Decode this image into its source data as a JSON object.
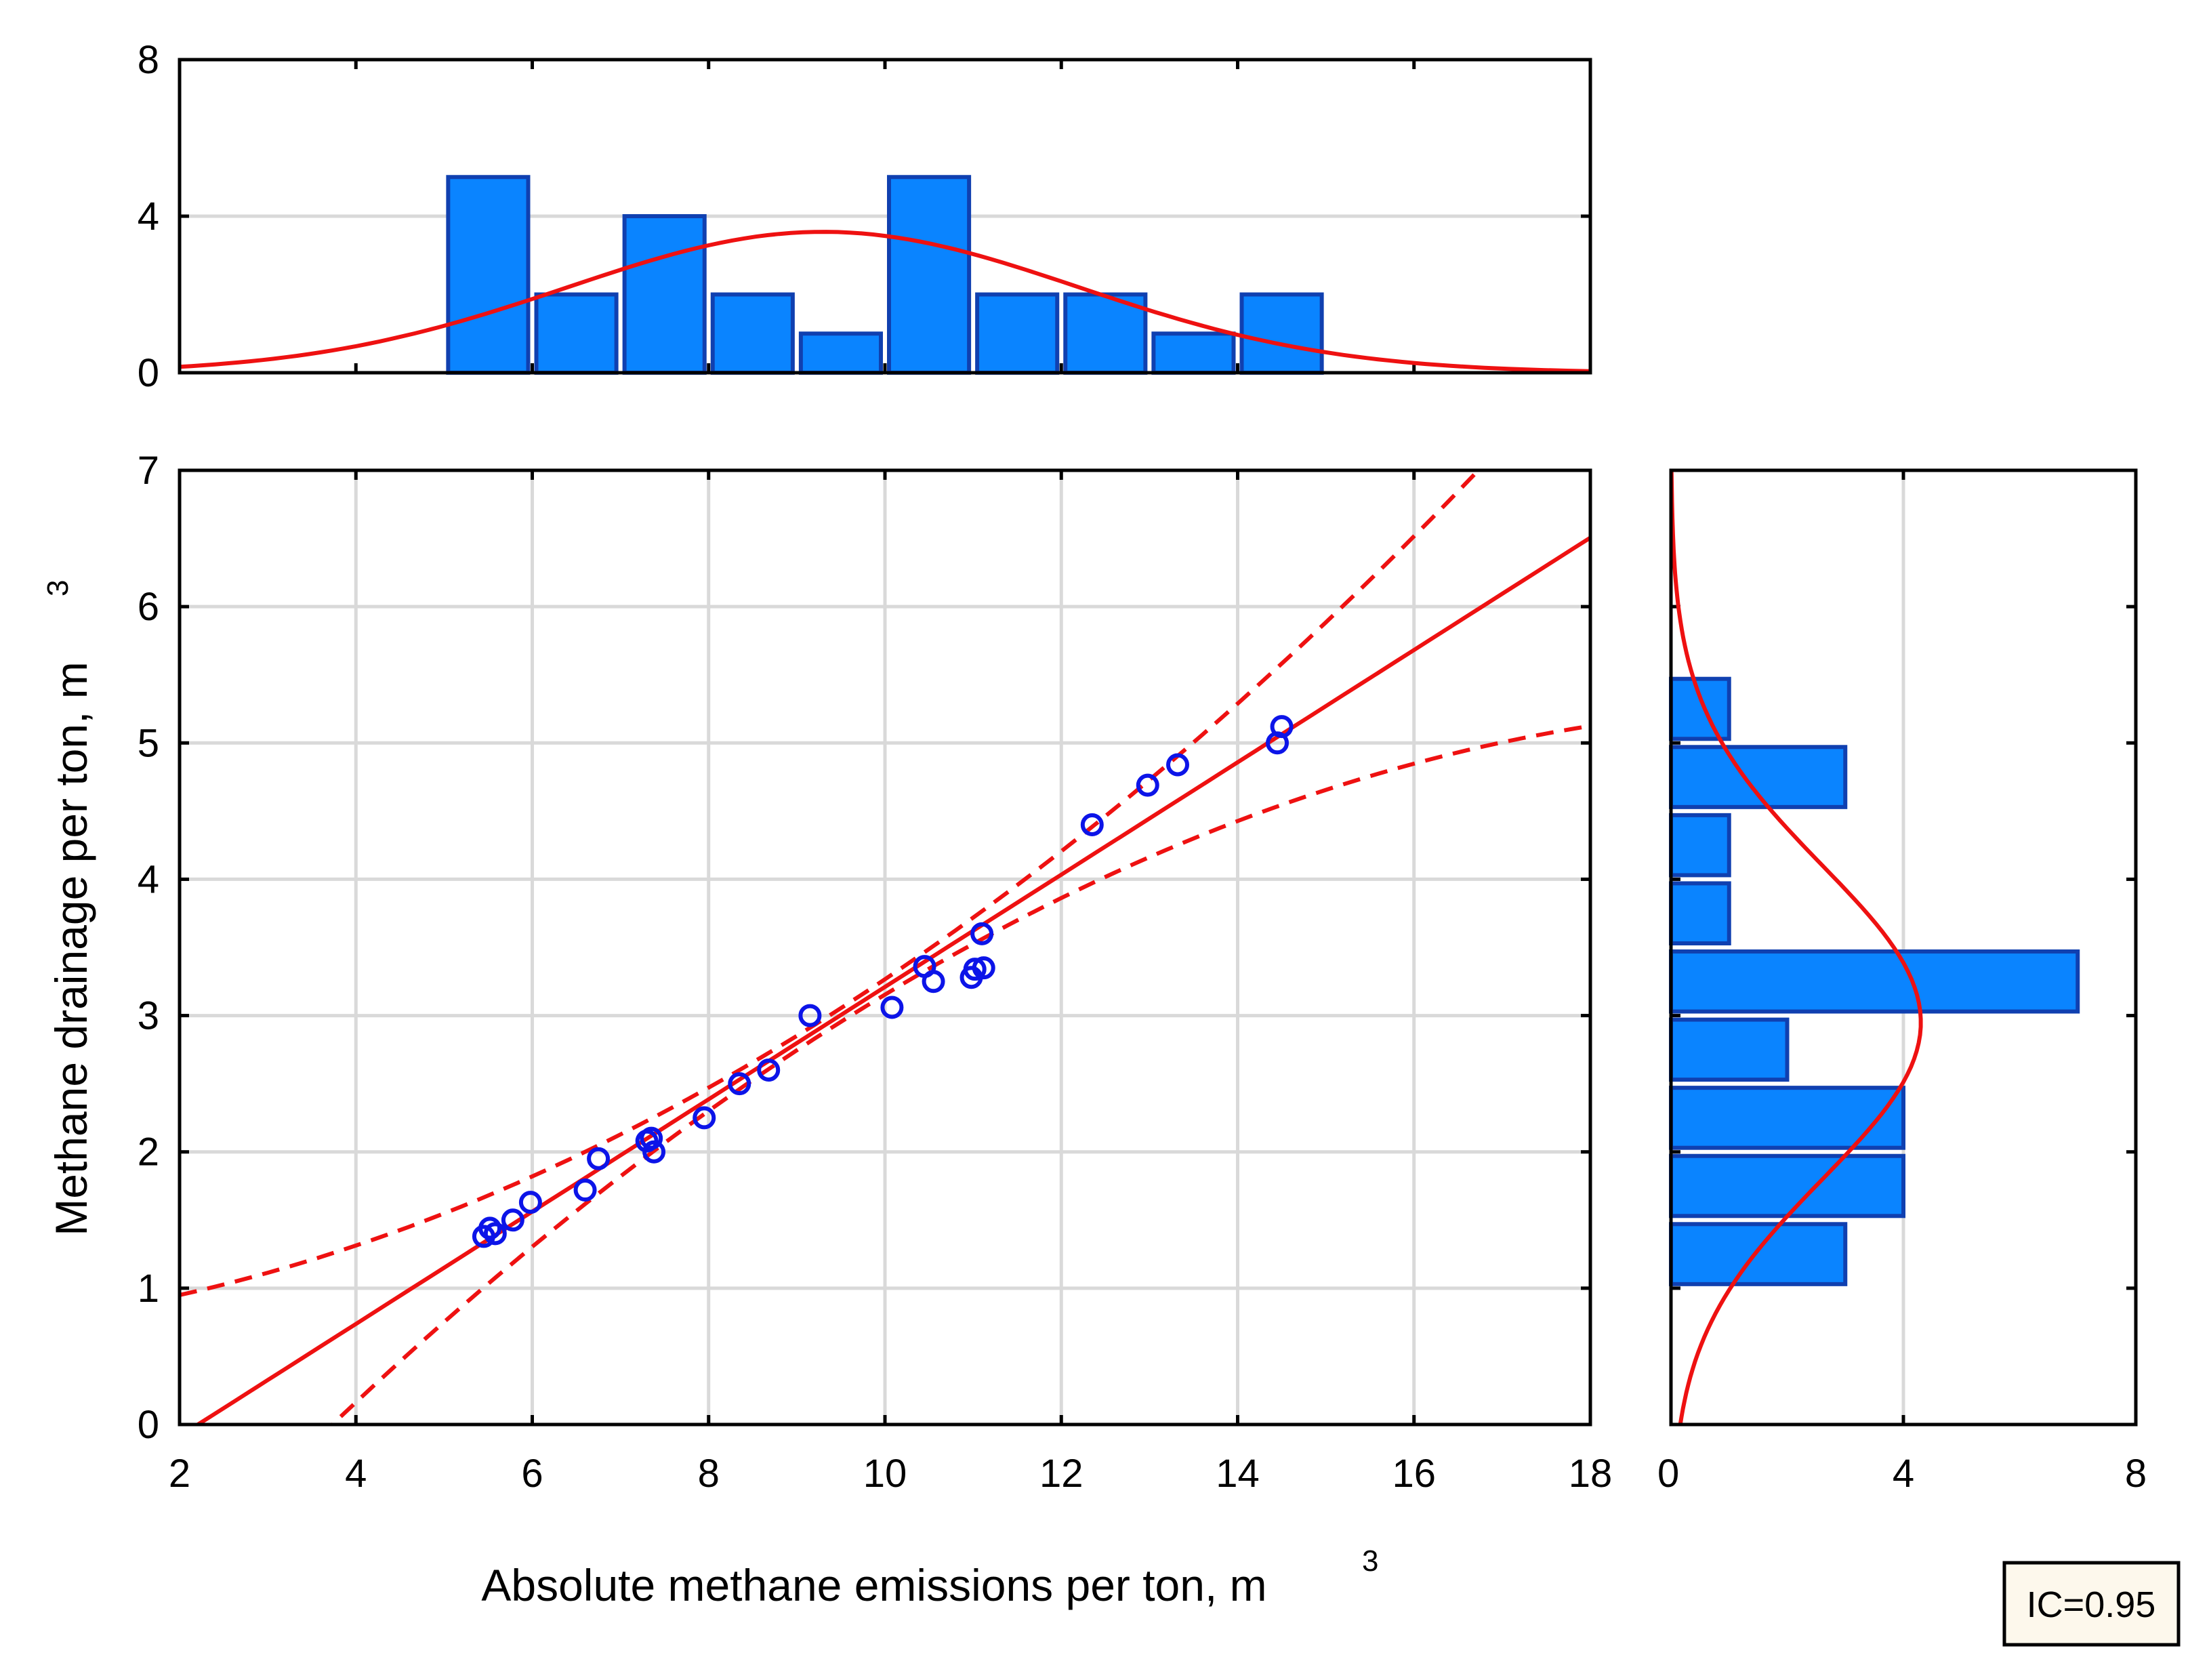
{
  "chart_data": {
    "type": "scatter",
    "xlabel": "Absolute methane emissions per ton, m",
    "xlabel_sup": "3",
    "ylabel": "Methane drainage per ton, m",
    "ylabel_sup": "3",
    "xlim": [
      2,
      18
    ],
    "ylim": [
      0,
      7
    ],
    "x_ticks": [
      "2",
      "4",
      "6",
      "8",
      "10",
      "12",
      "14",
      "16",
      "18"
    ],
    "y_ticks": [
      "0",
      "1",
      "2",
      "3",
      "4",
      "5",
      "6",
      "7"
    ],
    "grid": true,
    "points": [
      {
        "x": 5.45,
        "y": 1.38
      },
      {
        "x": 5.52,
        "y": 1.44
      },
      {
        "x": 5.58,
        "y": 1.4
      },
      {
        "x": 5.78,
        "y": 1.5
      },
      {
        "x": 5.98,
        "y": 1.63
      },
      {
        "x": 6.6,
        "y": 1.72
      },
      {
        "x": 6.75,
        "y": 1.95
      },
      {
        "x": 7.3,
        "y": 2.08
      },
      {
        "x": 7.35,
        "y": 2.1
      },
      {
        "x": 7.38,
        "y": 2.0
      },
      {
        "x": 7.95,
        "y": 2.25
      },
      {
        "x": 8.35,
        "y": 2.5
      },
      {
        "x": 8.68,
        "y": 2.6
      },
      {
        "x": 9.15,
        "y": 3.0
      },
      {
        "x": 10.08,
        "y": 3.06
      },
      {
        "x": 10.45,
        "y": 3.36
      },
      {
        "x": 10.55,
        "y": 3.25
      },
      {
        "x": 10.98,
        "y": 3.28
      },
      {
        "x": 11.02,
        "y": 3.34
      },
      {
        "x": 11.12,
        "y": 3.35
      },
      {
        "x": 11.1,
        "y": 3.6
      },
      {
        "x": 12.35,
        "y": 4.4
      },
      {
        "x": 12.98,
        "y": 4.69
      },
      {
        "x": 13.32,
        "y": 4.84
      },
      {
        "x": 14.45,
        "y": 5.0
      },
      {
        "x": 14.5,
        "y": 5.12
      }
    ],
    "fit": {
      "slope": 0.412,
      "intercept": -0.91
    },
    "confidence_level": 0.95,
    "confidence_half_width": {
      "min": 0.05,
      "k": 0.018,
      "center": 9.4
    },
    "top_histogram": {
      "variable": "x",
      "ylim": [
        0,
        8
      ],
      "y_ticks": [
        "0",
        "4",
        "8"
      ],
      "bins": [
        {
          "from": 5,
          "to": 6,
          "count": 5
        },
        {
          "from": 6,
          "to": 7,
          "count": 2
        },
        {
          "from": 7,
          "to": 8,
          "count": 4
        },
        {
          "from": 8,
          "to": 9,
          "count": 2
        },
        {
          "from": 9,
          "to": 10,
          "count": 1
        },
        {
          "from": 10,
          "to": 11,
          "count": 5
        },
        {
          "from": 11,
          "to": 12,
          "count": 2
        },
        {
          "from": 12,
          "to": 13,
          "count": 2
        },
        {
          "from": 13,
          "to": 14,
          "count": 1
        },
        {
          "from": 14,
          "to": 15,
          "count": 2
        }
      ],
      "normal_curve": {
        "mean": 9.3,
        "sd": 2.9,
        "peak": 3.6
      }
    },
    "right_histogram": {
      "variable": "y",
      "xlim": [
        0,
        8
      ],
      "x_ticks": [
        "0",
        "4",
        "8"
      ],
      "bins": [
        {
          "from": 1.0,
          "to": 1.5,
          "count": 3
        },
        {
          "from": 1.5,
          "to": 2.0,
          "count": 4
        },
        {
          "from": 2.0,
          "to": 2.5,
          "count": 4
        },
        {
          "from": 2.5,
          "to": 3.0,
          "count": 2
        },
        {
          "from": 3.0,
          "to": 3.5,
          "count": 7
        },
        {
          "from": 3.5,
          "to": 4.0,
          "count": 1
        },
        {
          "from": 4.0,
          "to": 4.5,
          "count": 1
        },
        {
          "from": 4.5,
          "to": 5.0,
          "count": 3
        },
        {
          "from": 5.0,
          "to": 5.5,
          "count": 1
        }
      ],
      "normal_curve": {
        "mean": 2.95,
        "sd": 1.15,
        "peak": 4.3
      }
    },
    "badge": "IC=0.95"
  }
}
